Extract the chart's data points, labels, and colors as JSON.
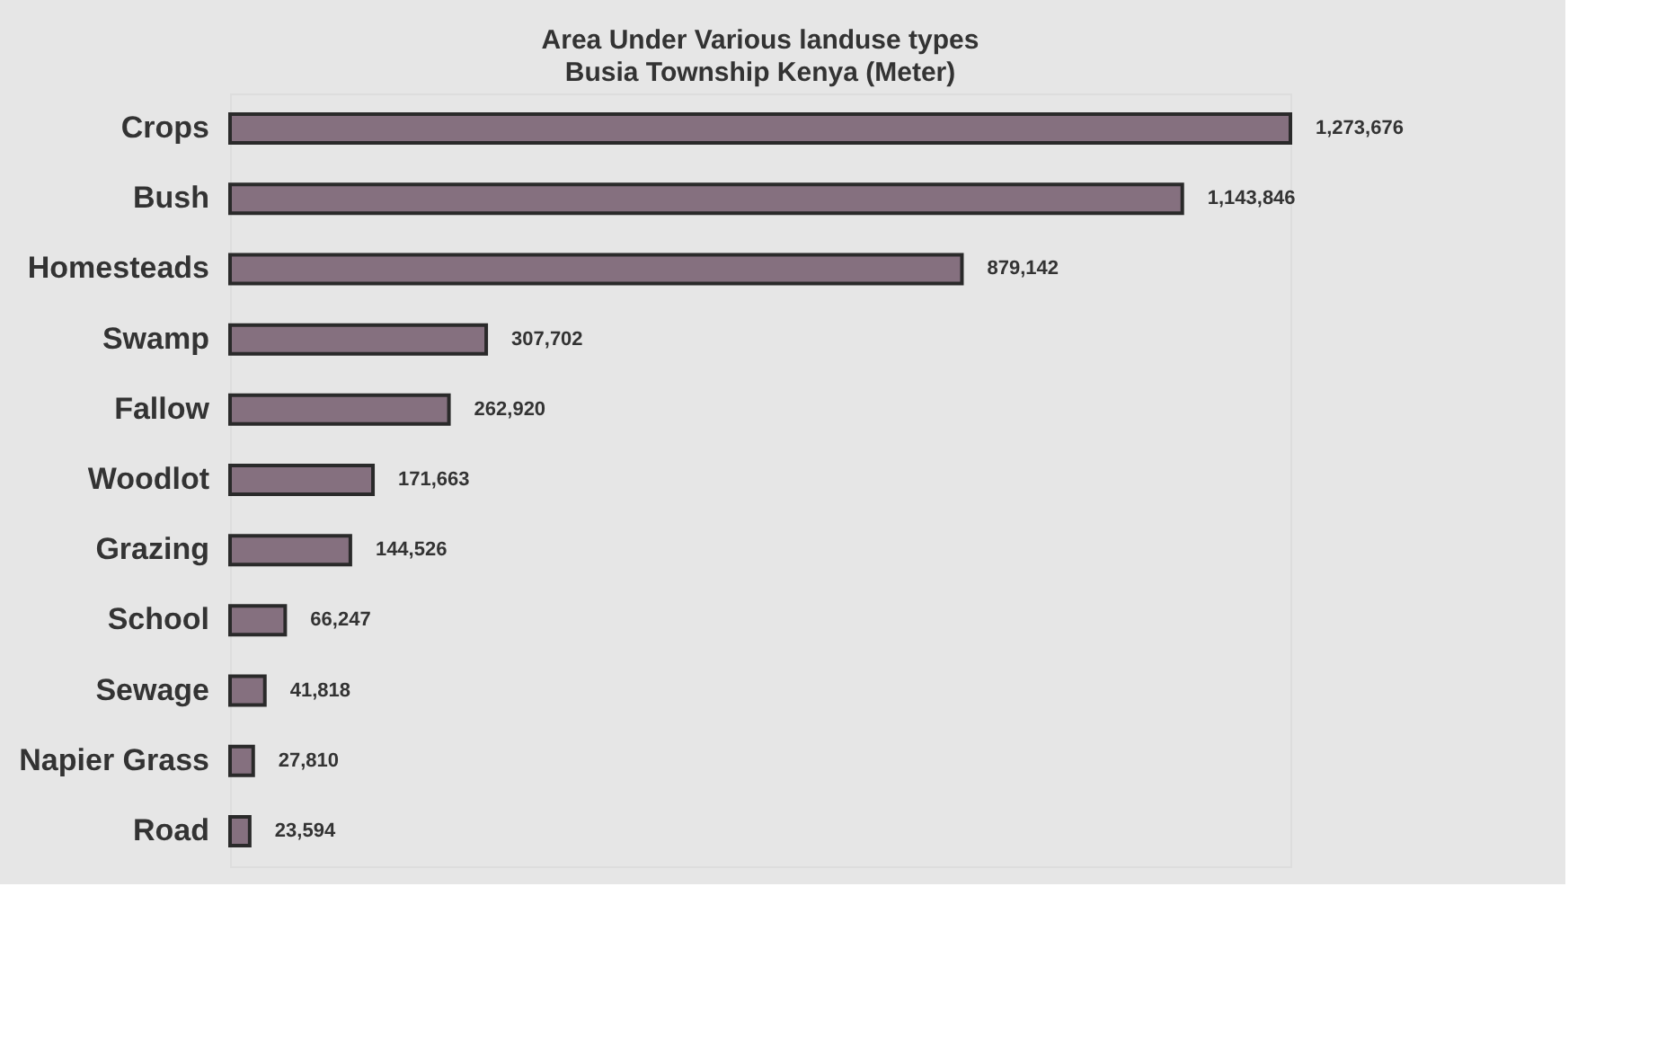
{
  "chart_data": {
    "type": "bar",
    "orientation": "horizontal",
    "title": "Area Under Various landuse types",
    "subtitle": "Busia Township Kenya (Meter)",
    "categories": [
      "Crops",
      "Bush",
      "Homesteads",
      "Swamp",
      "Fallow",
      "Woodlot",
      "Grazing",
      "School",
      "Sewage",
      "Napier Grass",
      "Road"
    ],
    "values": [
      1273676,
      1143846,
      879142,
      307702,
      262920,
      171663,
      144526,
      66247,
      41818,
      27810,
      23594
    ],
    "value_labels": [
      "1,273,676",
      "1,143,846",
      "879,142",
      "307,702",
      "262,920",
      "171,663",
      "144,526",
      "66,247",
      "41,818",
      "27,810",
      "23,594"
    ],
    "color": "#85707f"
  }
}
